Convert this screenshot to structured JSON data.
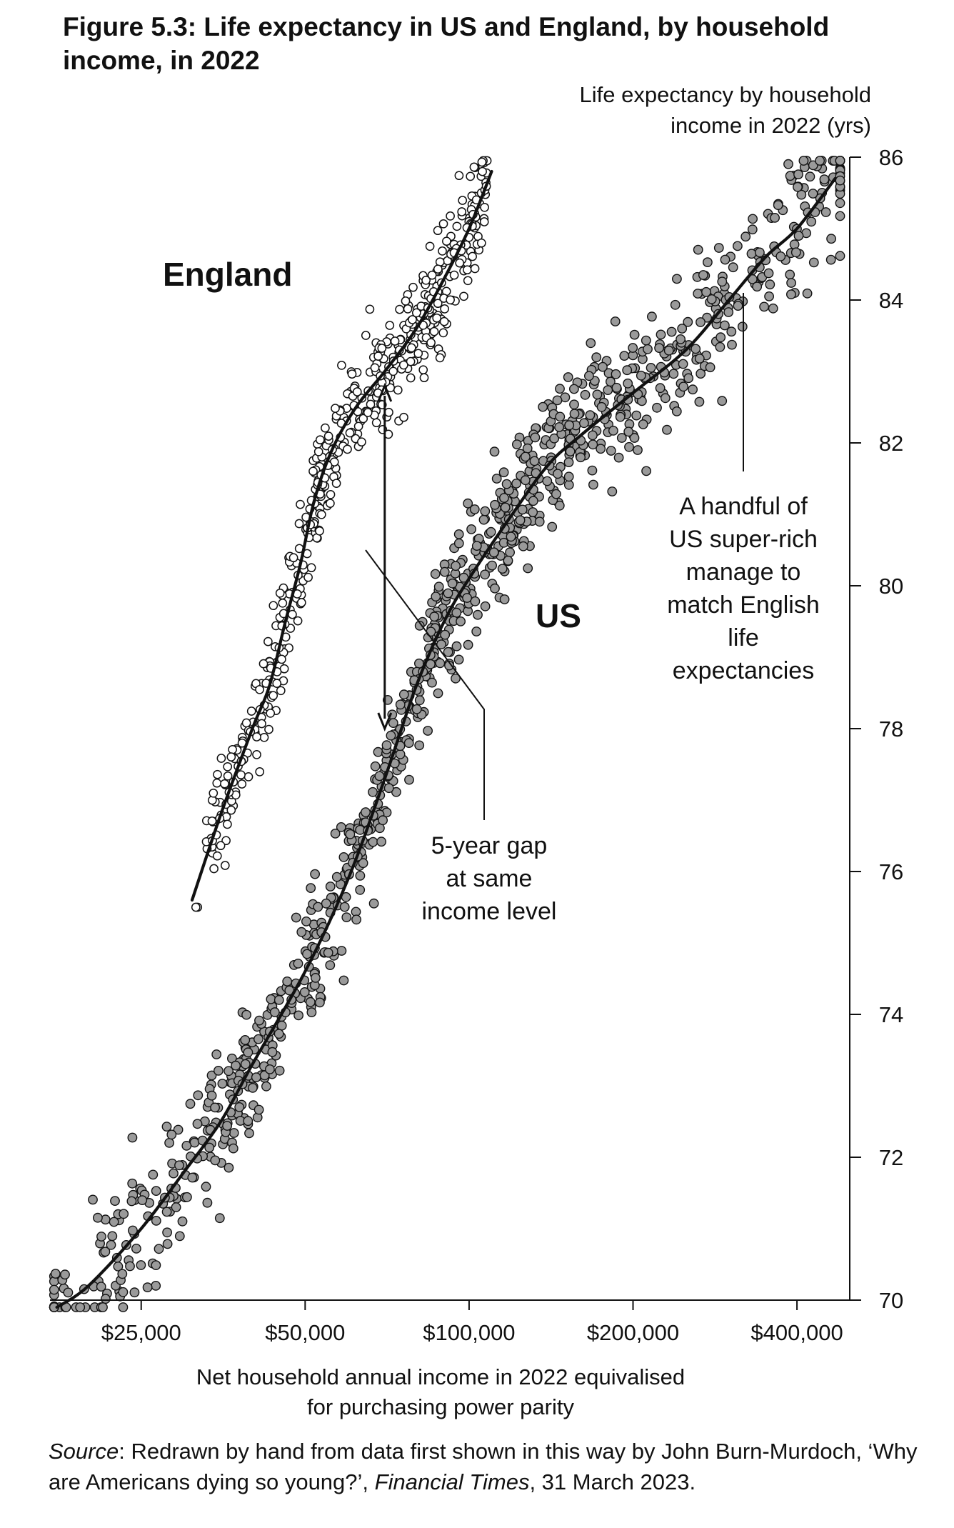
{
  "figure": {
    "title": "Figure 5.3: Life expectancy in US and England, by household income, in 2022"
  },
  "chart_data": {
    "type": "scatter",
    "title": "Figure 5.3: Life expectancy in US and England, by household income, in 2022",
    "ylabel": [
      "Life expectancy by household",
      "income in 2022 (yrs)"
    ],
    "xlabel": [
      "Net household annual income in 2022 equivalised",
      "for purchasing power parity"
    ],
    "x_scale": "log",
    "xlim": [
      17000,
      500000
    ],
    "ylim": [
      70,
      86
    ],
    "x_ticks": [
      25000,
      50000,
      100000,
      200000,
      400000
    ],
    "x_tick_labels": [
      "$25,000",
      "$50,000",
      "$100,000",
      "$200,000",
      "$400,000"
    ],
    "y_ticks": [
      70,
      72,
      74,
      76,
      78,
      80,
      82,
      84,
      86
    ],
    "y_tick_labels": [
      "70",
      "72",
      "74",
      "76",
      "78",
      "80",
      "82",
      "84",
      "86"
    ],
    "y_axis_position": "right",
    "grid": false,
    "series": [
      {
        "name": "England",
        "marker": "open-circle",
        "color": "#ffffff",
        "stroke": "#111111",
        "n_points": 520,
        "trend": {
          "x": [
            31000,
            35000,
            40000,
            43000,
            46000,
            49000,
            52000,
            56000,
            62000,
            70000,
            80000,
            90000,
            100000,
            110000
          ],
          "y": [
            75.6,
            76.8,
            78.0,
            78.6,
            79.5,
            80.3,
            81.2,
            81.9,
            82.5,
            83.0,
            83.6,
            84.3,
            85.0,
            85.8
          ]
        }
      },
      {
        "name": "US",
        "marker": "filled-circle",
        "color": "#9a9a9a",
        "stroke": "#111111",
        "n_points": 1050,
        "trend": {
          "x": [
            17500,
            20000,
            25000,
            30000,
            35000,
            40000,
            50000,
            60000,
            70000,
            80000,
            90000,
            100000,
            120000,
            140000,
            160000,
            200000,
            250000,
            300000,
            350000,
            400000,
            470000
          ],
          "y": [
            69.9,
            70.2,
            71.0,
            71.8,
            72.5,
            73.3,
            74.6,
            75.9,
            77.3,
            78.6,
            79.5,
            80.1,
            81.0,
            81.7,
            82.1,
            82.7,
            83.3,
            84.0,
            84.6,
            85.0,
            85.7
          ]
        }
      }
    ],
    "annotations": {
      "england_label": "England",
      "us_label": "US",
      "gap_text": [
        "5-year gap",
        "at same",
        "income level"
      ],
      "gap_arrow": {
        "x": 70000,
        "y_from": 82.8,
        "y_to": 78.0
      },
      "super_rich_text": [
        "A handful of",
        "US super-rich",
        "manage to",
        "match English",
        "life",
        "expectancies"
      ]
    }
  },
  "source": {
    "lead": "Source",
    "text1": ": Redrawn by hand from data first shown in this way by John Burn-Murdoch, ‘Why are Americans dying so young?’, ",
    "publication": "Financial Times",
    "text2": ", 31 March 2023."
  }
}
